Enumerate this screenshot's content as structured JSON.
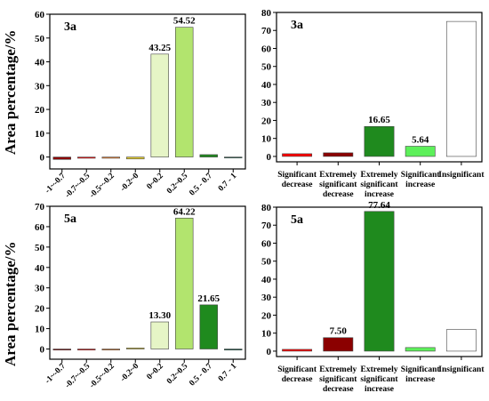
{
  "ylabel": "Area percentage/%",
  "chart_data": [
    {
      "type": "bar",
      "panel_label": "3a",
      "categories": [
        "-1~-0.7",
        "-0.7~-0.5",
        "-0.5~-0.2",
        "-0.2~0",
        "0~0.2",
        "0.2~0.5",
        "0.5 - 0.7",
        "0.7 - 1"
      ],
      "values": [
        -1,
        -0.5,
        -0.5,
        -0.8,
        43.25,
        54.52,
        1,
        -0.3
      ],
      "data_labels": [
        "",
        "",
        "",
        "",
        "43.25",
        "54.52",
        "",
        ""
      ],
      "colors": [
        "#8b0000",
        "#ff0000",
        "#f07f2a",
        "#e3cc2f",
        "#e6f5c6",
        "#b2e46e",
        "#1f8a1e",
        "#0e5c48"
      ],
      "ylim": [
        -5,
        60
      ],
      "yticks": [
        0,
        10,
        20,
        30,
        40,
        50,
        60
      ]
    },
    {
      "type": "bar",
      "panel_label": "3a",
      "categories": [
        "Significant decrease",
        "Extremely significant decrease",
        "Extremely significant increase",
        "Significant increase",
        "Insignificant"
      ],
      "values": [
        1.5,
        2,
        16.65,
        5.64,
        75
      ],
      "data_labels": [
        "",
        "",
        "16.65",
        "5.64",
        ""
      ],
      "colors": [
        "#ff0000",
        "#8b0000",
        "#1f8a1e",
        "#5df05a",
        "#ffffff"
      ],
      "ylim": [
        -3,
        80
      ],
      "yticks": [
        0,
        10,
        20,
        30,
        40,
        50,
        60,
        70,
        80
      ]
    },
    {
      "type": "bar",
      "panel_label": "5a",
      "categories": [
        "-1~-0.7",
        "-0.7~-0.5",
        "-0.5~-0.2",
        "-0.2~0",
        "0~0.2",
        "0.2~0.5",
        "0.5 - 0.7",
        "0.7 - 1"
      ],
      "values": [
        -0.5,
        -0.5,
        -0.5,
        0.5,
        13.3,
        64.22,
        21.65,
        -0.5
      ],
      "data_labels": [
        "",
        "",
        "",
        "",
        "13.30",
        "64.22",
        "21.65",
        ""
      ],
      "colors": [
        "#8b0000",
        "#ff0000",
        "#f07f2a",
        "#e3cc2f",
        "#e6f5c6",
        "#b2e46e",
        "#1f8a1e",
        "#0e5c48"
      ],
      "ylim": [
        -5,
        70
      ],
      "yticks": [
        0,
        10,
        20,
        30,
        40,
        50,
        60,
        70
      ]
    },
    {
      "type": "bar",
      "panel_label": "5a",
      "categories": [
        "Significant decrease",
        "Extremely significant decrease",
        "Extremely significant increase",
        "Significant increase",
        "Insignificant"
      ],
      "values": [
        1,
        7.5,
        77.64,
        2,
        12
      ],
      "data_labels": [
        "",
        "7.50",
        "77.64",
        "",
        ""
      ],
      "colors": [
        "#ff0000",
        "#8b0000",
        "#1f8a1e",
        "#5df05a",
        "#ffffff"
      ],
      "ylim": [
        -3,
        80
      ],
      "yticks": [
        0,
        10,
        20,
        30,
        40,
        50,
        60,
        70,
        80
      ]
    }
  ]
}
